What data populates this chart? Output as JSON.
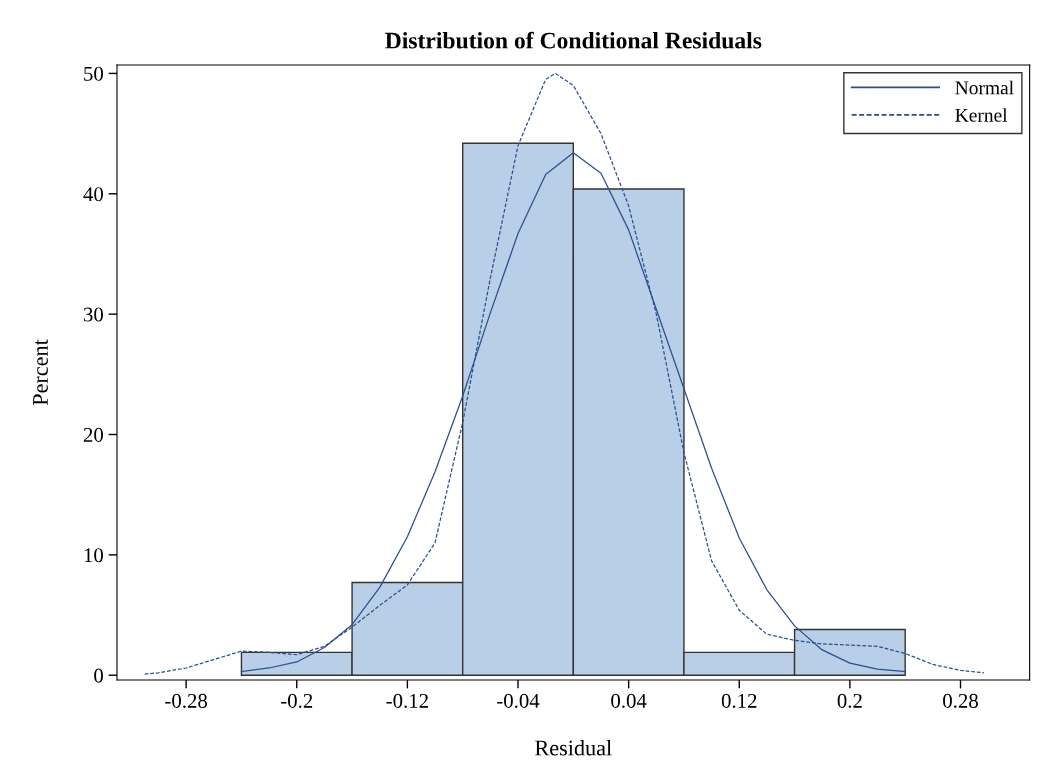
{
  "chart_data": {
    "type": "histogram",
    "title": "Distribution of Conditional Residuals",
    "xlabel": "Residual",
    "ylabel": "Percent",
    "bins": [
      -0.24,
      -0.16,
      -0.08,
      0,
      0.08,
      0.16,
      0.24
    ],
    "values": [
      1.9,
      7.7,
      44.2,
      40.4,
      1.9,
      3.8
    ],
    "color": "#b8cfe7",
    "series": [
      {
        "name": "Normal",
        "type": "line",
        "line_style": "solid",
        "color": "#2b4f8f",
        "x": [
          -0.24,
          -0.22,
          -0.2,
          -0.18,
          -0.16,
          -0.14,
          -0.12,
          -0.1,
          -0.08,
          -0.06,
          -0.04,
          -0.02,
          0,
          0.02,
          0.04,
          0.06,
          0.08,
          0.1,
          0.12,
          0.14,
          0.16,
          0.18,
          0.2,
          0.22,
          0.24
        ],
        "values": [
          0.3,
          0.6,
          1.1,
          2.3,
          4.2,
          7.3,
          11.5,
          16.9,
          23.2,
          30.1,
          36.7,
          41.6,
          43.4,
          41.7,
          37.0,
          30.4,
          23.8,
          17.2,
          11.4,
          7.1,
          4.1,
          2.1,
          1.0,
          0.5,
          0.3
        ]
      },
      {
        "name": "Kernel",
        "type": "line",
        "line_style": "dashed",
        "color": "#2b4f8f",
        "x": [
          -0.31,
          -0.3,
          -0.28,
          -0.26,
          -0.24,
          -0.22,
          -0.2,
          -0.18,
          -0.16,
          -0.14,
          -0.12,
          -0.1,
          -0.08,
          -0.06,
          -0.04,
          -0.02,
          -0.013,
          0,
          0.02,
          0.04,
          0.06,
          0.08,
          0.1,
          0.12,
          0.14,
          0.16,
          0.18,
          0.2,
          0.22,
          0.24,
          0.26,
          0.28,
          0.297
        ],
        "values": [
          0.1,
          0.2,
          0.6,
          1.3,
          2.0,
          1.9,
          1.7,
          2.4,
          4.0,
          5.8,
          7.5,
          11.0,
          21.0,
          33.0,
          44.0,
          49.5,
          50.0,
          49.0,
          45.0,
          39.0,
          30.0,
          18.5,
          9.5,
          5.4,
          3.4,
          2.9,
          2.6,
          2.5,
          2.4,
          1.8,
          0.9,
          0.4,
          0.2
        ]
      }
    ],
    "xlim": [
      -0.33,
      0.33
    ],
    "xticks": [
      -0.28,
      -0.2,
      -0.12,
      -0.04,
      0.04,
      0.12,
      0.2,
      0.28
    ],
    "ylim": [
      -0.4,
      50.7
    ],
    "yticks": [
      0,
      10,
      20,
      30,
      40,
      50
    ],
    "legend": "top right"
  }
}
